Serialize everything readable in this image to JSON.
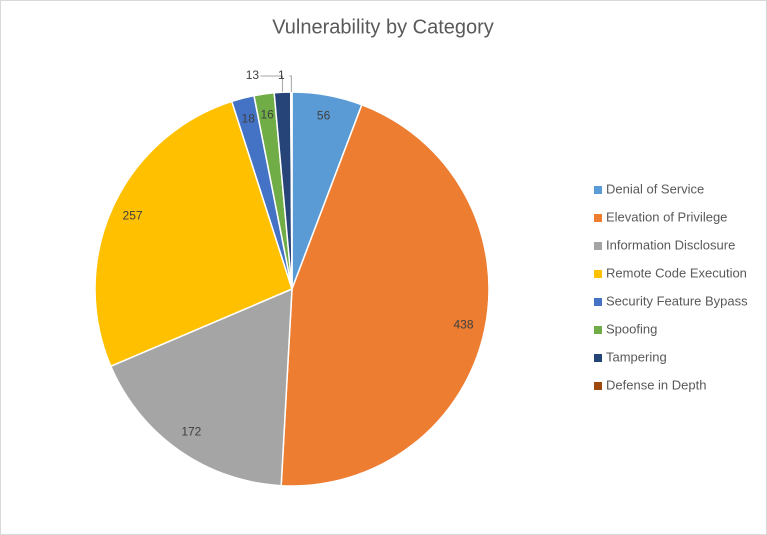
{
  "chart_data": {
    "type": "pie",
    "title": "Vulnerability by Category",
    "categories": [
      "Denial of Service",
      "Elevation of Privilege",
      "Information Disclosure",
      "Remote Code Execution",
      "Security Feature Bypass",
      "Spoofing",
      "Tampering",
      "Defense in Depth"
    ],
    "values": [
      56,
      438,
      172,
      257,
      18,
      16,
      13,
      1
    ],
    "colors": [
      "#5b9bd5",
      "#ed7d31",
      "#a5a5a5",
      "#ffc000",
      "#4472c4",
      "#70ad47",
      "#264478",
      "#9e480e"
    ],
    "legend": "right"
  }
}
